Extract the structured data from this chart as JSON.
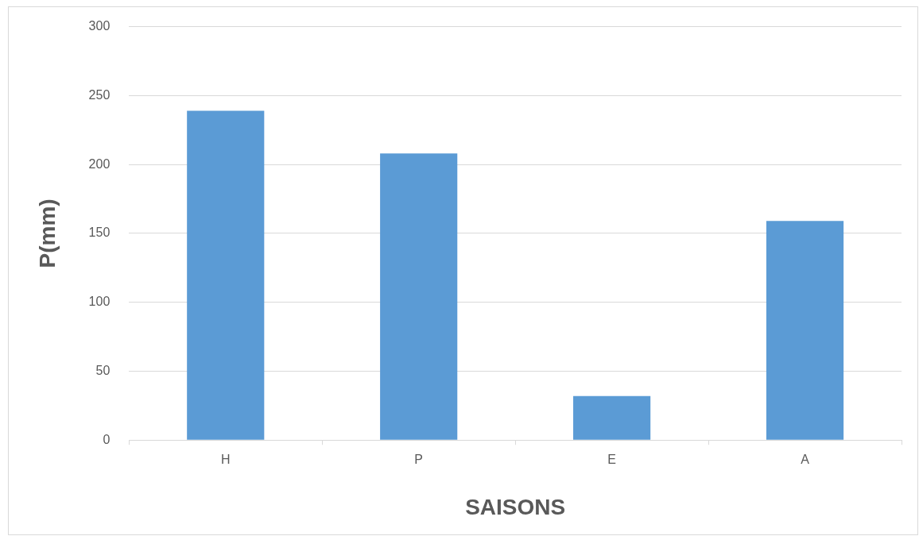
{
  "chart_data": {
    "type": "bar",
    "xlabel": "SAISONS",
    "ylabel": "P(mm)",
    "categories": [
      "H",
      "P",
      "E",
      "A"
    ],
    "values": [
      239,
      208,
      32,
      159
    ],
    "color": "#5b9bd5",
    "ylim": [
      0,
      300
    ],
    "yticks": [
      0,
      50,
      100,
      150,
      200,
      250,
      300
    ],
    "grid": "y",
    "legend": false
  }
}
